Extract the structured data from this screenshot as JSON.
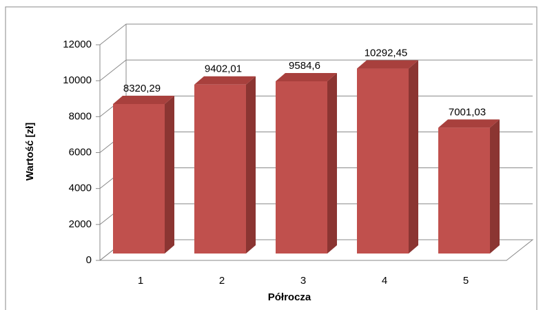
{
  "chart_data": {
    "type": "bar3d",
    "x_label": "Półrocza",
    "y_label": "Wartość [zł]",
    "categories": [
      "1",
      "2",
      "3",
      "4",
      "5"
    ],
    "values": [
      8320.29,
      9402.01,
      9584.6,
      10292.45,
      7001.03
    ],
    "value_labels": [
      "8320,29",
      "9402,01",
      "9584,6",
      "10292,45",
      "7001,03"
    ],
    "color": "#c0504d",
    "ylim": [
      0,
      12000
    ],
    "yticks": [
      0,
      2000,
      4000,
      6000,
      8000,
      10000,
      12000
    ],
    "grid": true
  }
}
